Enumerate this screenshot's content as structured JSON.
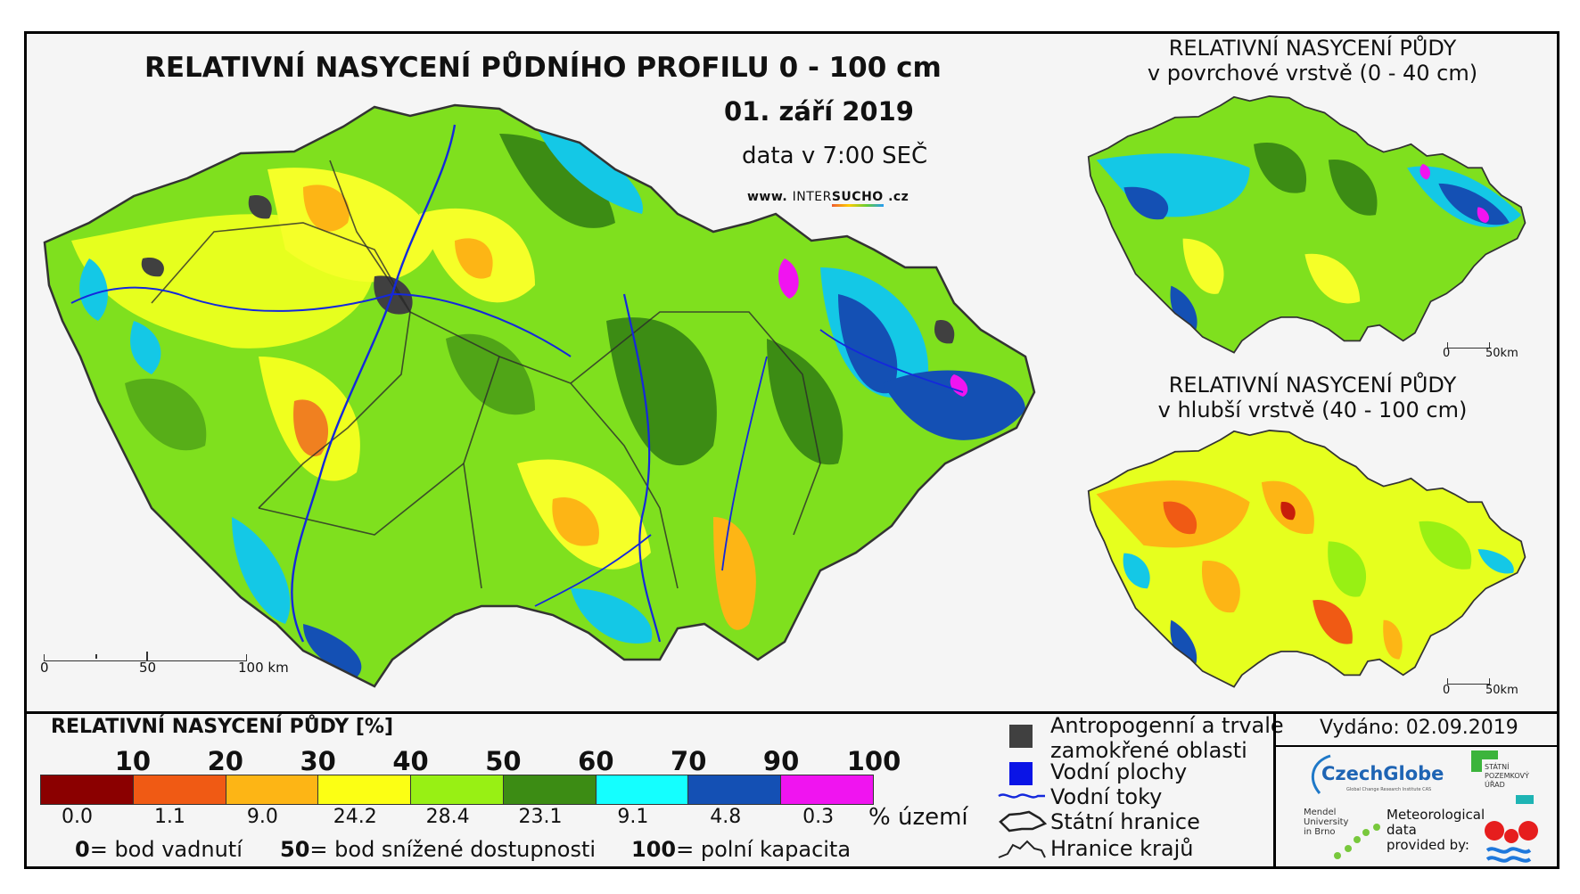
{
  "title": "RELATIVNÍ NASYCENÍ PŮDNÍHO PROFILU 0 - 100 cm",
  "date": "01. září 2019",
  "data_time": "data v 7:00 SEČ",
  "website": {
    "prefix": "www.",
    "inter": "INTER",
    "sucho": "SUCHO",
    "suffix": ".cz"
  },
  "inset_top": {
    "line1": "RELATIVNÍ NASYCENÍ PŮDY",
    "line2": "v povrchové vrstvě (0 - 40 cm)"
  },
  "inset_bottom": {
    "line1": "RELATIVNÍ NASYCENÍ PŮDY",
    "line2": "v hlubší vrstvě (40 - 100 cm)"
  },
  "scale_main": {
    "zero": "0",
    "mid": "50",
    "end": "100 km"
  },
  "scale_inset": {
    "zero": "0",
    "end": "50km"
  },
  "legend": {
    "title": "RELATIVNÍ NASYCENÍ PŮDY [%]",
    "breaks": [
      "10",
      "20",
      "30",
      "40",
      "50",
      "60",
      "70",
      "90",
      "100"
    ],
    "colors": [
      "#8b0000",
      "#f05a14",
      "#fdb515",
      "#fcff14",
      "#98f014",
      "#3c8c14",
      "#14ffff",
      "#1450b4",
      "#f014f0"
    ],
    "percent_area": [
      "0.0",
      "1.1",
      "9.0",
      "24.2",
      "28.4",
      "23.1",
      "9.1",
      "4.8",
      "0.3"
    ],
    "percent_unit": "% území",
    "caption": {
      "zero_num": "0",
      "zero_text": "= bod vadnutí",
      "fifty_num": "50",
      "fifty_text": "= bod snížené dostupnosti",
      "hundred_num": "100",
      "hundred_text": "= polní kapacita"
    }
  },
  "map_legend": {
    "anthropogenic_line1": "Antropogenní a trvale",
    "anthropogenic_line2": "zamokřené oblasti",
    "water_bodies": "Vodní plochy",
    "rivers": "Vodní toky",
    "state_border": "Státní hranice",
    "region_border": "Hranice krajů",
    "colors": {
      "anthropogenic": "#404040",
      "water": "#0a14e6",
      "river": "#1428dc"
    }
  },
  "issued": "Vydáno: 02.09.2019",
  "logos": {
    "czechglobe": "CzechGlobe",
    "czechglobe_sub": "Global Change Research Institute CAS",
    "spu_line1": "STÁTNÍ",
    "spu_line2": "POZEMKOVÝ",
    "spu_line3": "ÚŘAD",
    "mendel_line1": "Mendel",
    "mendel_line2": "University",
    "mendel_line3": "in Brno",
    "meteo_line1": "Meteorological",
    "meteo_line2": "data",
    "meteo_line3": "provided by:"
  }
}
